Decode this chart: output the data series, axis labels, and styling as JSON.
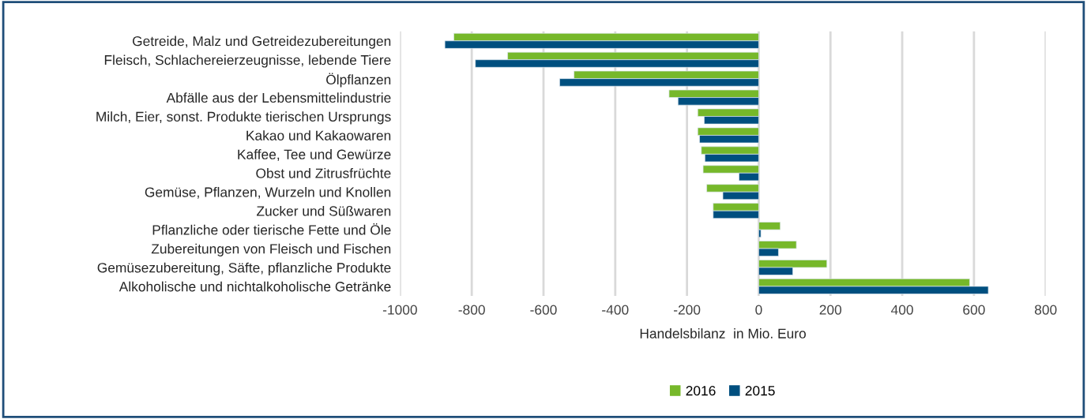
{
  "chart_data": {
    "type": "bar",
    "orientation": "horizontal",
    "xlabel": "Handelsbilanz  in Mio. Euro",
    "categories": [
      "Getreide, Malz und Getreidezubereitungen",
      "Fleisch, Schlachereierzeugnisse, lebende Tiere",
      "Ölpflanzen",
      "Abfälle aus der Lebensmittelindustrie",
      "Milch, Eier, sonst. Produkte tierischen Ursprungs",
      "Kakao und Kakaowaren",
      "Kaffee, Tee und Gewürze",
      "Obst und Zitrusfrüchte",
      "Gemüse, Pflanzen, Wurzeln und Knollen",
      "Zucker und Süßwaren",
      "Pflanzliche oder tierische Fette und Öle",
      "Zubereitungen von Fleisch und Fischen",
      "Gemüsezubereitung, Säfte, pflanzliche Produkte",
      "Alkoholische und nichtalkoholische Getränke"
    ],
    "series": [
      {
        "name": "2016",
        "color": "#76b82a",
        "values": [
          -850,
          -700,
          -515,
          -250,
          -170,
          -170,
          -160,
          -155,
          -145,
          -127,
          60,
          105,
          190,
          588
        ]
      },
      {
        "name": "2015",
        "color": "#004f7f",
        "values": [
          -875,
          -790,
          -555,
          -225,
          -152,
          -165,
          -150,
          -55,
          -100,
          -127,
          6,
          55,
          95,
          640
        ]
      }
    ],
    "xlim": [
      -1000,
      800
    ],
    "xticks": [
      -1000,
      -800,
      -600,
      -400,
      -200,
      0,
      200,
      400,
      600,
      800
    ],
    "grid": "x",
    "legend": "bottom"
  }
}
